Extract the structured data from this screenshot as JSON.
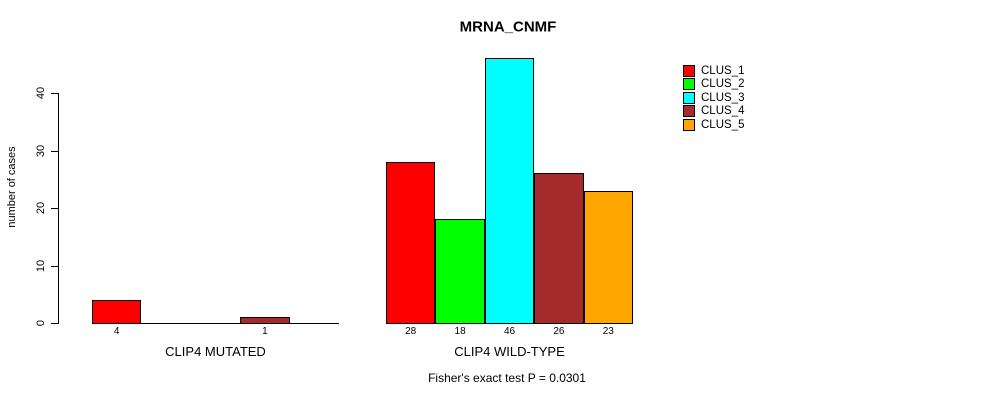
{
  "chart_data": {
    "type": "bar",
    "title": "MRNA_CNMF",
    "ylabel": "number of cases",
    "xlabel": "",
    "yticks": [
      0,
      10,
      20,
      30,
      40
    ],
    "ylim": [
      0,
      46
    ],
    "grid": false,
    "legend_position": "right",
    "categories": [
      "CLIP4 MUTATED",
      "CLIP4 WILD-TYPE"
    ],
    "series": [
      {
        "name": "CLUS_1",
        "color": "#FF0000",
        "values": [
          4,
          28
        ]
      },
      {
        "name": "CLUS_2",
        "color": "#00FF00",
        "values": [
          0,
          18
        ]
      },
      {
        "name": "CLUS_3",
        "color": "#00FFFF",
        "values": [
          0,
          46
        ]
      },
      {
        "name": "CLUS_4",
        "color": "#A52A2A",
        "values": [
          1,
          26
        ]
      },
      {
        "name": "CLUS_5",
        "color": "#FFA500",
        "values": [
          0,
          23
        ]
      }
    ],
    "bar_value_labels": {
      "CLIP4 MUTATED": [
        "4",
        "",
        "",
        "1",
        ""
      ],
      "CLIP4 WILD-TYPE": [
        "28",
        "18",
        "46",
        "26",
        "23"
      ]
    },
    "annotation": "Fisher's exact test P = 0.0301"
  }
}
